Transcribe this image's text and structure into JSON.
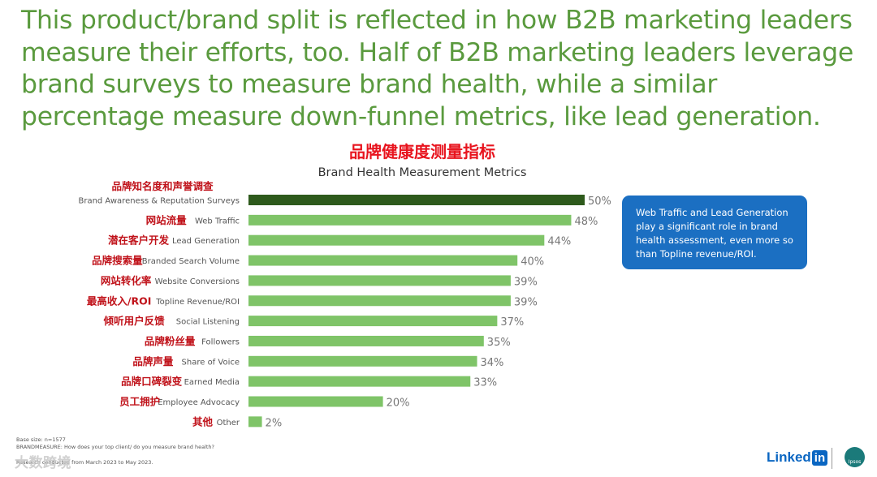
{
  "headline": "This product/brand split is reflected in how B2B marketing leaders measure their efforts, too. Half of B2B marketing leaders leverage brand surveys to measure brand health, while a similar percentage measure down-funnel metrics, like lead generation.",
  "callout": {
    "text": "Web Traffic and Lead Generation play a significant role in brand health assessment, even more so than Topline revenue/ROI."
  },
  "footnotes": {
    "base": "Base size: n=1577",
    "question": "BRANDMEASURE: How does your top client/ do you measure brand health?",
    "period": "Research conducted from March 2023 to May 2023."
  },
  "watermark": "大数跨境",
  "logos": {
    "linkedin_text": "Linked",
    "linkedin_badge": "in",
    "ipsos_text": "Ipsos"
  },
  "colors": {
    "headline": "#5a9a3e",
    "bar_highlight": "#2e5a1c",
    "bar": "#7fc468",
    "title_cn": "#e8141e",
    "label_cn": "#c0121a",
    "callout_bg": "#1b6fc2"
  },
  "chart_data": {
    "type": "bar",
    "orientation": "horizontal",
    "title": "品牌健康度测量指标",
    "subtitle": "Brand Health Measurement Metrics",
    "unit": "%",
    "xlim": [
      0,
      50
    ],
    "grid": false,
    "categories_cn": [
      "品牌知名度和声誉调查",
      "网站流量",
      "潜在客户开发",
      "品牌搜索量",
      "网站转化率",
      "最高收入/ROI",
      "倾听用户反馈",
      "品牌粉丝量",
      "品牌声量",
      "品牌口碑裂变",
      "员工拥护",
      "其他"
    ],
    "categories": [
      "Brand Awareness & Reputation Surveys",
      "Web Traffic",
      "Lead Generation",
      "Branded Search Volume",
      "Website Conversions",
      "Topline Revenue/ROI",
      "Social Listening",
      "Followers",
      "Share of Voice",
      "Earned Media",
      "Employee Advocacy",
      "Other"
    ],
    "values": [
      50,
      48,
      44,
      40,
      39,
      39,
      37,
      35,
      34,
      33,
      20,
      2
    ],
    "value_labels": [
      "50%",
      "48%",
      "44%",
      "40%",
      "39%",
      "39%",
      "37%",
      "35%",
      "34%",
      "33%",
      "20%",
      "2%"
    ],
    "highlight_index": 0
  }
}
